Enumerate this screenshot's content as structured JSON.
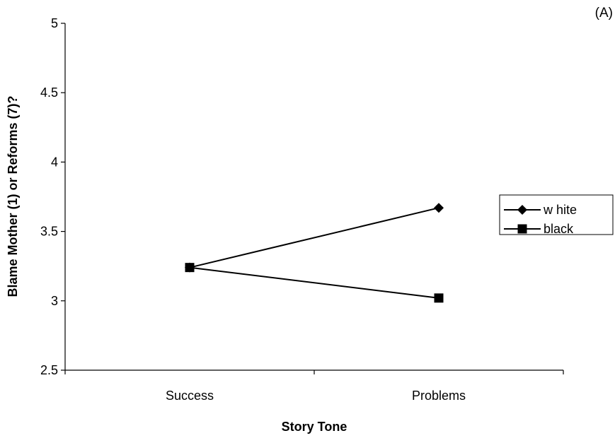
{
  "panel_label": "(A)",
  "chart_data": {
    "type": "line",
    "title": "",
    "xlabel": "Story Tone",
    "ylabel": "Blame Mother (1) or Reforms (7)?",
    "categories": [
      "Success",
      "Problems"
    ],
    "ylim": [
      2.5,
      5
    ],
    "yticks": [
      "2.5",
      "3",
      "3.5",
      "4",
      "4.5",
      "5"
    ],
    "grid": false,
    "legend_position": "right",
    "series": [
      {
        "name": "w hite",
        "values": [
          3.24,
          3.67
        ],
        "marker": "diamond",
        "color": "#000000"
      },
      {
        "name": "black",
        "values": [
          3.24,
          3.02
        ],
        "marker": "square",
        "color": "#000000"
      }
    ]
  }
}
